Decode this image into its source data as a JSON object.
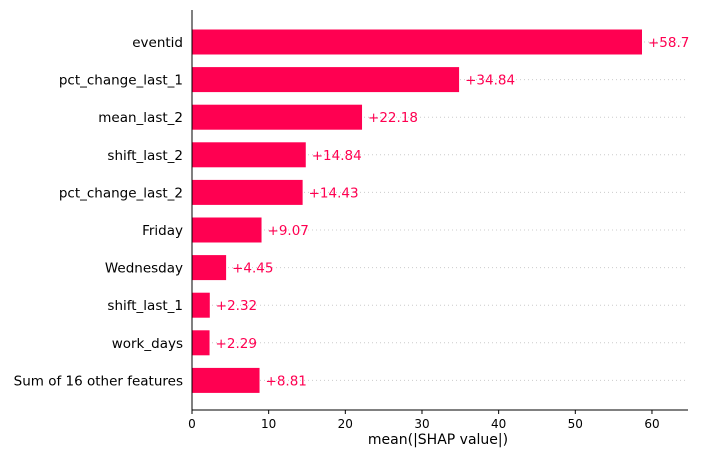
{
  "chart_data": {
    "type": "bar",
    "orientation": "horizontal",
    "categories": [
      "eventid",
      "pct_change_last_1",
      "mean_last_2",
      "shift_last_2",
      "pct_change_last_2",
      "Friday",
      "Wednesday",
      "shift_last_1",
      "work_days",
      "Sum of 16 other features"
    ],
    "values": [
      58.7,
      34.84,
      22.18,
      14.84,
      14.43,
      9.07,
      4.45,
      2.32,
      2.29,
      8.81
    ],
    "value_labels": [
      "+58.7",
      "+34.84",
      "+22.18",
      "+14.84",
      "+14.43",
      "+9.07",
      "+4.45",
      "+2.32",
      "+2.29",
      "+8.81"
    ],
    "xlabel": "mean(|SHAP value|)",
    "ylabel": "",
    "title": "",
    "xlim": [
      0,
      65
    ],
    "xticks": [
      0,
      10,
      20,
      30,
      40,
      50,
      60
    ],
    "xtick_labels": [
      "0",
      "10",
      "20",
      "30",
      "40",
      "50",
      "60"
    ],
    "grid": "horizontal dotted guide lines per bar",
    "legend": "none",
    "colors": {
      "bar": "#ff0051",
      "value_label": "#ff0051",
      "text": "#000000",
      "axis": "#000000",
      "guide": "#cccccc"
    }
  }
}
